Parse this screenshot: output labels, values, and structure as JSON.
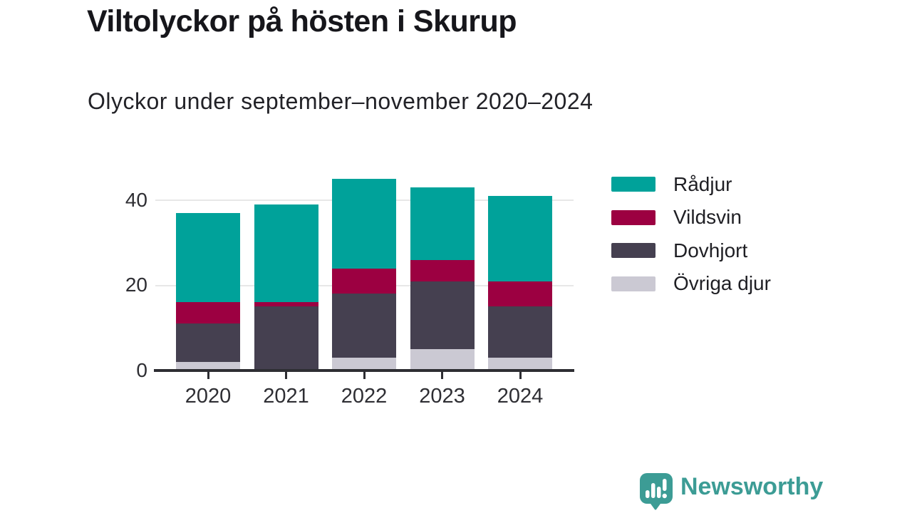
{
  "title": "Viltolyckor på hösten i Skurup",
  "subtitle": "Olyckor under september–november 2020–2024",
  "colors": {
    "radjur": "#00A29A",
    "vildsvin": "#9C0041",
    "dovhjort": "#454050",
    "ovriga_djur": "#CBC9D3",
    "axis": "#2E2E33",
    "grid": "#E7E7E7",
    "logo": "#3C9C95"
  },
  "chart_data": {
    "type": "bar",
    "stacked": true,
    "title": "Viltolyckor på hösten i Skurup",
    "subtitle": "Olyckor under september–november 2020–2024",
    "categories": [
      "2020",
      "2021",
      "2022",
      "2023",
      "2024"
    ],
    "series": [
      {
        "name": "Rådjur",
        "color_key": "radjur",
        "values": [
          21,
          23,
          21,
          17,
          20
        ]
      },
      {
        "name": "Vildsvin",
        "color_key": "vildsvin",
        "values": [
          5,
          1,
          6,
          5,
          6
        ]
      },
      {
        "name": "Dovhjort",
        "color_key": "dovhjort",
        "values": [
          9,
          15,
          15,
          16,
          12
        ]
      },
      {
        "name": "Övriga djur",
        "color_key": "ovriga_djur",
        "values": [
          2,
          0,
          3,
          5,
          3
        ]
      }
    ],
    "stack_order_bottom_to_top": [
      "Övriga djur",
      "Dovhjort",
      "Vildsvin",
      "Rådjur"
    ],
    "stack_totals": [
      37,
      39,
      45,
      43,
      41
    ],
    "yticks": [
      "0",
      "20",
      "40"
    ],
    "ylim": [
      0,
      45.3
    ],
    "grid": "horizontal",
    "legend_position": "right"
  },
  "logo": {
    "text": "Newsworthy"
  }
}
